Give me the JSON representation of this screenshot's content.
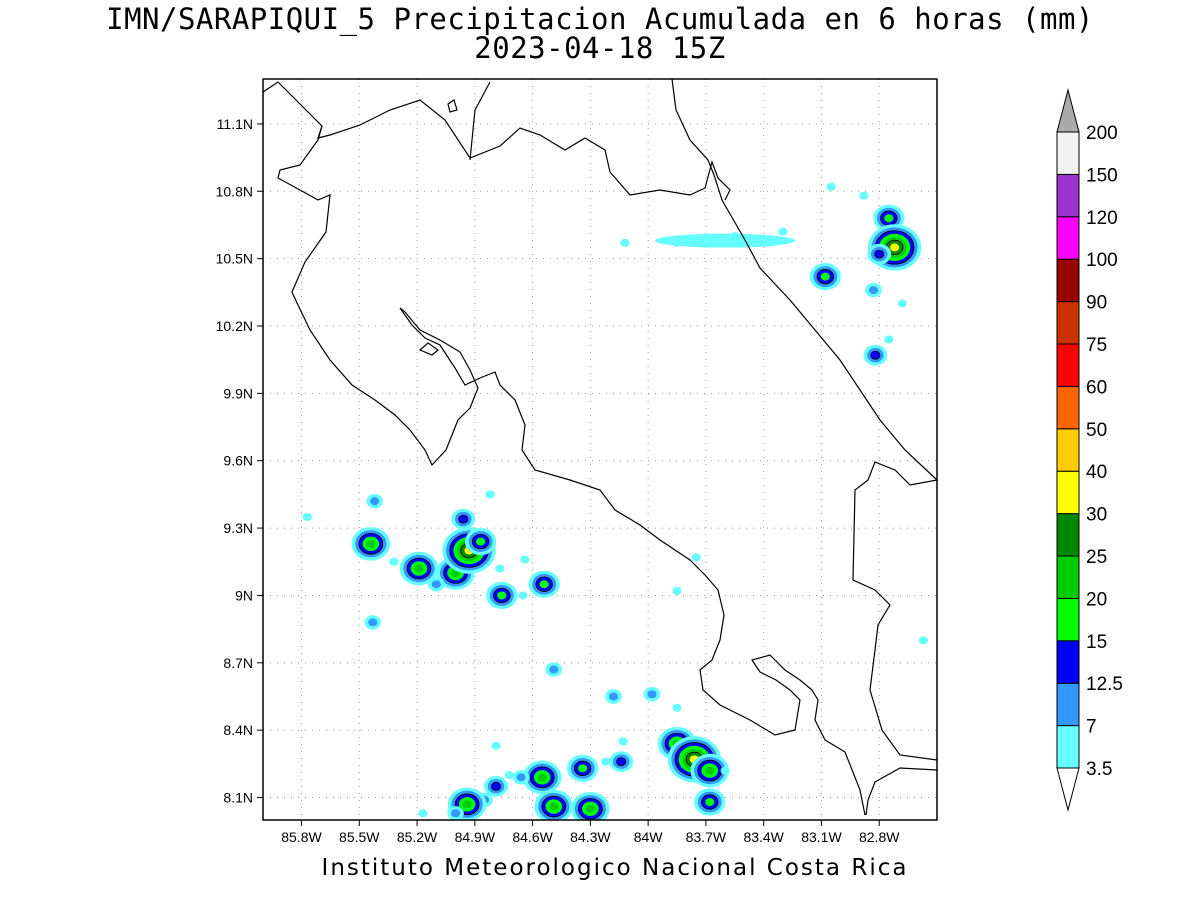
{
  "header": {
    "title": "IMN/SARAPIQUI_5 Precipitacion Acumulada en 6 horas (mm)",
    "datetime": "2023-04-18 15Z"
  },
  "footer": {
    "credit": "Instituto Meteorologico Nacional Costa Rica"
  },
  "map": {
    "lon_labels": [
      "85.8W",
      "85.5W",
      "85.2W",
      "84.9W",
      "84.6W",
      "84.3W",
      "84W",
      "83.7W",
      "83.4W",
      "83.1W",
      "82.8W"
    ],
    "lat_labels": [
      "11.1N",
      "10.8N",
      "10.5N",
      "10.2N",
      "9.9N",
      "9.6N",
      "9.3N",
      "9N",
      "8.7N",
      "8.4N",
      "8.1N"
    ],
    "lon_values": [
      -85.8,
      -85.5,
      -85.2,
      -84.9,
      -84.6,
      -84.3,
      -84.0,
      -83.7,
      -83.4,
      -83.1,
      -82.8
    ],
    "lat_values": [
      11.1,
      10.8,
      10.5,
      10.2,
      9.9,
      9.6,
      9.3,
      9.0,
      8.7,
      8.4,
      8.1
    ],
    "lon_range": [
      -86.0,
      -82.5
    ],
    "lat_range": [
      8.0,
      11.3
    ],
    "grid": "dotted",
    "coastline_color": "#000000"
  },
  "legend": {
    "levels": [
      {
        "label": "3.5",
        "color": "#ffffff"
      },
      {
        "label": "7",
        "color": "#66ffff"
      },
      {
        "label": "12.5",
        "color": "#3399ff"
      },
      {
        "label": "15",
        "color": "#0000ff"
      },
      {
        "label": "20",
        "color": "#00ff00"
      },
      {
        "label": "25",
        "color": "#00cc00"
      },
      {
        "label": "30",
        "color": "#008800"
      },
      {
        "label": "40",
        "color": "#ffff00"
      },
      {
        "label": "50",
        "color": "#ffcc00"
      },
      {
        "label": "60",
        "color": "#ff6600"
      },
      {
        "label": "75",
        "color": "#ff0000"
      },
      {
        "label": "90",
        "color": "#cc3300"
      },
      {
        "label": "100",
        "color": "#990000"
      },
      {
        "label": "120",
        "color": "#ff00ff"
      },
      {
        "label": "150",
        "color": "#9933cc"
      },
      {
        "label": "200",
        "color": "#f2f2f2"
      }
    ],
    "top_arrow_color": "#aaaaaa",
    "bottom_arrow_color": "#ffffff"
  },
  "precip_cells": [
    {
      "lon": -84.12,
      "lat": 10.57,
      "level": 1
    },
    {
      "lon": -83.85,
      "lat": 10.57,
      "level": 1
    },
    {
      "lon": -83.55,
      "lat": 10.6,
      "level": 1
    },
    {
      "lon": -83.3,
      "lat": 10.62,
      "level": 1
    },
    {
      "lon": -83.05,
      "lat": 10.82,
      "level": 1
    },
    {
      "lon": -82.88,
      "lat": 10.78,
      "level": 1
    },
    {
      "lon": -82.75,
      "lat": 10.68,
      "level": 4
    },
    {
      "lon": -82.72,
      "lat": 10.55,
      "level": 7
    },
    {
      "lon": -82.8,
      "lat": 10.52,
      "level": 3
    },
    {
      "lon": -83.08,
      "lat": 10.42,
      "level": 4
    },
    {
      "lon": -82.83,
      "lat": 10.36,
      "level": 2
    },
    {
      "lon": -82.68,
      "lat": 10.3,
      "level": 1
    },
    {
      "lon": -82.82,
      "lat": 10.07,
      "level": 3
    },
    {
      "lon": -82.75,
      "lat": 10.14,
      "level": 1
    },
    {
      "lon": -85.77,
      "lat": 9.35,
      "level": 1
    },
    {
      "lon": -85.42,
      "lat": 9.42,
      "level": 2
    },
    {
      "lon": -85.48,
      "lat": 9.27,
      "level": 1
    },
    {
      "lon": -85.44,
      "lat": 9.23,
      "level": 5
    },
    {
      "lon": -85.32,
      "lat": 9.15,
      "level": 1
    },
    {
      "lon": -85.19,
      "lat": 9.12,
      "level": 5
    },
    {
      "lon": -85.0,
      "lat": 9.1,
      "level": 5
    },
    {
      "lon": -84.93,
      "lat": 9.2,
      "level": 7
    },
    {
      "lon": -84.87,
      "lat": 9.24,
      "level": 4
    },
    {
      "lon": -84.96,
      "lat": 9.34,
      "level": 3
    },
    {
      "lon": -85.1,
      "lat": 9.05,
      "level": 2
    },
    {
      "lon": -84.77,
      "lat": 9.12,
      "level": 1
    },
    {
      "lon": -84.76,
      "lat": 9.0,
      "level": 4
    },
    {
      "lon": -84.64,
      "lat": 9.16,
      "level": 1
    },
    {
      "lon": -84.65,
      "lat": 9.0,
      "level": 1
    },
    {
      "lon": -84.54,
      "lat": 9.05,
      "level": 4
    },
    {
      "lon": -84.82,
      "lat": 9.45,
      "level": 1
    },
    {
      "lon": -85.43,
      "lat": 8.88,
      "level": 2
    },
    {
      "lon": -84.49,
      "lat": 8.67,
      "level": 2
    },
    {
      "lon": -83.75,
      "lat": 9.17,
      "level": 1
    },
    {
      "lon": -83.85,
      "lat": 9.02,
      "level": 1
    },
    {
      "lon": -84.18,
      "lat": 8.55,
      "level": 2
    },
    {
      "lon": -83.98,
      "lat": 8.56,
      "level": 2
    },
    {
      "lon": -83.85,
      "lat": 8.5,
      "level": 1
    },
    {
      "lon": -83.85,
      "lat": 8.34,
      "level": 5
    },
    {
      "lon": -83.76,
      "lat": 8.27,
      "level": 7
    },
    {
      "lon": -83.68,
      "lat": 8.22,
      "level": 5
    },
    {
      "lon": -83.6,
      "lat": 8.22,
      "level": 1
    },
    {
      "lon": -83.68,
      "lat": 8.08,
      "level": 4
    },
    {
      "lon": -84.79,
      "lat": 8.33,
      "level": 1
    },
    {
      "lon": -84.13,
      "lat": 8.35,
      "level": 1
    },
    {
      "lon": -84.22,
      "lat": 8.26,
      "level": 1
    },
    {
      "lon": -84.14,
      "lat": 8.26,
      "level": 3
    },
    {
      "lon": -84.34,
      "lat": 8.23,
      "level": 4
    },
    {
      "lon": -84.55,
      "lat": 8.19,
      "level": 5
    },
    {
      "lon": -84.66,
      "lat": 8.19,
      "level": 2
    },
    {
      "lon": -84.72,
      "lat": 8.2,
      "level": 1
    },
    {
      "lon": -84.79,
      "lat": 8.15,
      "level": 3
    },
    {
      "lon": -84.85,
      "lat": 8.09,
      "level": 2
    },
    {
      "lon": -84.94,
      "lat": 8.07,
      "level": 5
    },
    {
      "lon": -85.0,
      "lat": 8.03,
      "level": 2
    },
    {
      "lon": -84.49,
      "lat": 8.06,
      "level": 5
    },
    {
      "lon": -84.3,
      "lat": 8.05,
      "level": 5
    },
    {
      "lon": -85.17,
      "lat": 8.03,
      "level": 1
    },
    {
      "lon": -82.57,
      "lat": 8.8,
      "level": 1
    }
  ]
}
